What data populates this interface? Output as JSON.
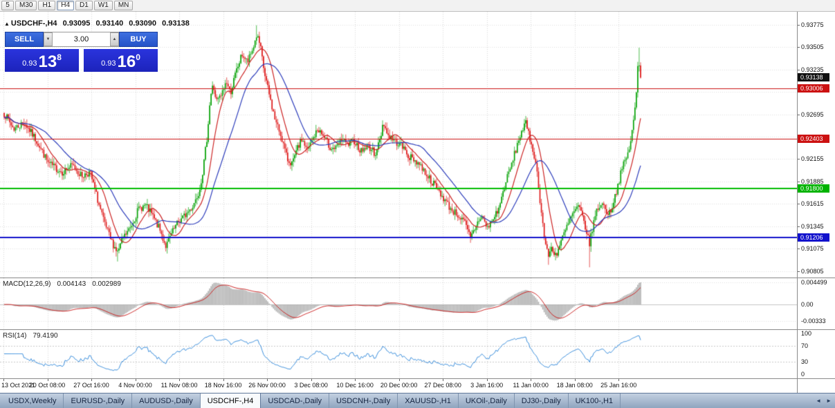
{
  "toolbar": {
    "timeframes": [
      {
        "label": "5",
        "active": false
      },
      {
        "label": "M30",
        "active": false
      },
      {
        "label": "H1",
        "active": false
      },
      {
        "label": "H4",
        "active": true
      },
      {
        "label": "D1",
        "active": false
      },
      {
        "label": "W1",
        "active": false
      },
      {
        "label": "MN",
        "active": false
      }
    ]
  },
  "chart": {
    "header": {
      "marker": "▲",
      "symbol": "USDCHF-,H4",
      "open": "0.93095",
      "high": "0.93140",
      "low": "0.93090",
      "close": "0.93138"
    },
    "trade_panel": {
      "sell_label": "SELL",
      "buy_label": "BUY",
      "volume": "3.00",
      "spinner_up": "▲",
      "spinner_down": "▼",
      "bid": {
        "prefix": "0.93",
        "big": "13",
        "sup": "8"
      },
      "ask": {
        "prefix": "0.93",
        "big": "16",
        "sup": "0"
      }
    },
    "price_axis": {
      "ticks": [
        "0.93775",
        "0.93505",
        "0.93235",
        "0.92695",
        "0.92155",
        "0.91885",
        "0.91615",
        "0.91345",
        "0.91075",
        "0.90805"
      ],
      "badges": [
        {
          "label": "0.93138",
          "color": "#101010",
          "price": 0.93138
        },
        {
          "label": "0.93006",
          "color": "#cc1111",
          "price": 0.93006
        },
        {
          "label": "0.92403",
          "color": "#cc1111",
          "price": 0.92403
        },
        {
          "label": "0.91800",
          "color": "#00b300",
          "price": 0.918
        },
        {
          "label": "0.91206",
          "color": "#1111cc",
          "price": 0.91206
        }
      ]
    },
    "time_axis": [
      "13 Oct 2021",
      "20 Oct 08:00",
      "27 Oct 16:00",
      "4 Nov 00:00",
      "11 Nov 08:00",
      "18 Nov 16:00",
      "26 Nov 00:00",
      "3 Dec 08:00",
      "10 Dec 16:00",
      "20 Dec 00:00",
      "27 Dec 08:00",
      "3 Jan 16:00",
      "11 Jan 00:00",
      "18 Jan 08:00",
      "25 Jan 16:00"
    ]
  },
  "macd": {
    "title": "MACD(12,26,9)",
    "value_macd": "0.004143",
    "value_signal": "0.002989",
    "axis": [
      "0.004499",
      "0.00",
      "-0.00333"
    ]
  },
  "rsi": {
    "title": "RSI(14)",
    "value": "79.4190",
    "axis": [
      "100",
      "70",
      "30",
      "0"
    ]
  },
  "tabs": {
    "items": [
      {
        "label": "USDX,Weekly",
        "active": false
      },
      {
        "label": "EURUSD-,Daily",
        "active": false
      },
      {
        "label": "AUDUSD-,Daily",
        "active": false
      },
      {
        "label": "USDCHF-,H4",
        "active": true
      },
      {
        "label": "USDCAD-,Daily",
        "active": false
      },
      {
        "label": "USDCNH-,Daily",
        "active": false
      },
      {
        "label": "XAUUSD-,H1",
        "active": false
      },
      {
        "label": "UKOil-,Daily",
        "active": false
      },
      {
        "label": "DJ30-,Daily",
        "active": false
      },
      {
        "label": "UK100-,H1",
        "active": false
      }
    ],
    "scroll_left": "◄",
    "scroll_right": "►"
  },
  "chart_data": {
    "type": "candlestick",
    "symbol": "USDCHF",
    "timeframe": "H4",
    "current": {
      "open": 0.93095,
      "high": 0.9314,
      "low": 0.9309,
      "close": 0.93138
    },
    "bars": 450,
    "bars_per_label": 31,
    "ylim": [
      0.9072,
      0.9393
    ],
    "up_color": "#00a000",
    "down_color": "#dd1111",
    "grid_prices": [
      0.93775,
      0.93505,
      0.93235,
      0.92965,
      0.92695,
      0.92425,
      0.92155,
      0.91885,
      0.91615,
      0.91345,
      0.91075,
      0.90805
    ],
    "levels": [
      {
        "price": 0.93006,
        "color": "#cc1111",
        "width": 1
      },
      {
        "price": 0.92403,
        "color": "#cc1111",
        "width": 1
      },
      {
        "price": 0.918,
        "color": "#00bb00",
        "width": 2
      },
      {
        "price": 0.91206,
        "color": "#1111cc",
        "width": 2
      }
    ],
    "moving_averages": [
      {
        "type": "sma",
        "period": 12,
        "color": "#cc2222"
      },
      {
        "type": "sma",
        "period": 30,
        "color": "#2b3bbb"
      }
    ],
    "price_path": [
      [
        5,
        0.9272
      ],
      [
        20,
        0.9252
      ],
      [
        35,
        0.926
      ],
      [
        55,
        0.9235
      ],
      [
        70,
        0.921
      ],
      [
        90,
        0.92
      ],
      [
        105,
        0.9208
      ],
      [
        118,
        0.9195
      ],
      [
        130,
        0.92
      ],
      [
        140,
        0.917
      ],
      [
        150,
        0.914
      ],
      [
        160,
        0.9118
      ],
      [
        170,
        0.9103
      ],
      [
        178,
        0.912
      ],
      [
        188,
        0.9132
      ],
      [
        200,
        0.9155
      ],
      [
        210,
        0.916
      ],
      [
        220,
        0.9148
      ],
      [
        230,
        0.9132
      ],
      [
        240,
        0.911
      ],
      [
        248,
        0.9125
      ],
      [
        258,
        0.914
      ],
      [
        268,
        0.9148
      ],
      [
        278,
        0.9158
      ],
      [
        288,
        0.9178
      ],
      [
        294,
        0.9205
      ],
      [
        299,
        0.924
      ],
      [
        304,
        0.929
      ],
      [
        308,
        0.9305
      ],
      [
        313,
        0.9285
      ],
      [
        320,
        0.9292
      ],
      [
        327,
        0.931
      ],
      [
        333,
        0.9295
      ],
      [
        341,
        0.932
      ],
      [
        350,
        0.9342
      ],
      [
        358,
        0.9332
      ],
      [
        366,
        0.935
      ],
      [
        371,
        0.9365
      ],
      [
        376,
        0.9352
      ],
      [
        382,
        0.932
      ],
      [
        390,
        0.929
      ],
      [
        398,
        0.9262
      ],
      [
        407,
        0.9242
      ],
      [
        415,
        0.9215
      ],
      [
        423,
        0.921
      ],
      [
        430,
        0.9228
      ],
      [
        437,
        0.924
      ],
      [
        444,
        0.9225
      ],
      [
        452,
        0.924
      ],
      [
        460,
        0.9252
      ],
      [
        468,
        0.9242
      ],
      [
        477,
        0.923
      ],
      [
        486,
        0.9228
      ],
      [
        494,
        0.924
      ],
      [
        502,
        0.9232
      ],
      [
        512,
        0.9238
      ],
      [
        522,
        0.9225
      ],
      [
        532,
        0.9232
      ],
      [
        542,
        0.9222
      ],
      [
        550,
        0.924
      ],
      [
        554,
        0.9262
      ],
      [
        560,
        0.9245
      ],
      [
        570,
        0.9238
      ],
      [
        580,
        0.9232
      ],
      [
        592,
        0.9218
      ],
      [
        604,
        0.9212
      ],
      [
        616,
        0.9198
      ],
      [
        628,
        0.9184
      ],
      [
        640,
        0.917
      ],
      [
        652,
        0.9155
      ],
      [
        662,
        0.9148
      ],
      [
        672,
        0.9138
      ],
      [
        680,
        0.912
      ],
      [
        688,
        0.9135
      ],
      [
        696,
        0.9148
      ],
      [
        704,
        0.9132
      ],
      [
        712,
        0.9142
      ],
      [
        722,
        0.9158
      ],
      [
        730,
        0.9185
      ],
      [
        738,
        0.9205
      ],
      [
        746,
        0.9228
      ],
      [
        754,
        0.925
      ],
      [
        760,
        0.9258
      ],
      [
        766,
        0.924
      ],
      [
        772,
        0.9222
      ],
      [
        777,
        0.9195
      ],
      [
        782,
        0.9155
      ],
      [
        787,
        0.912
      ],
      [
        792,
        0.9098
      ],
      [
        797,
        0.9108
      ],
      [
        804,
        0.91
      ],
      [
        812,
        0.9118
      ],
      [
        820,
        0.9135
      ],
      [
        828,
        0.915
      ],
      [
        836,
        0.9158
      ],
      [
        842,
        0.9146
      ],
      [
        848,
        0.9128
      ],
      [
        852,
        0.9112
      ],
      [
        857,
        0.9135
      ],
      [
        862,
        0.9152
      ],
      [
        868,
        0.9162
      ],
      [
        874,
        0.9158
      ],
      [
        880,
        0.9148
      ],
      [
        886,
        0.9162
      ],
      [
        892,
        0.918
      ],
      [
        898,
        0.92
      ],
      [
        904,
        0.9215
      ],
      [
        908,
        0.9222
      ],
      [
        912,
        0.924
      ],
      [
        916,
        0.9262
      ],
      [
        919,
        0.9288
      ],
      [
        921,
        0.9302
      ],
      [
        922.5,
        0.9348
      ],
      [
        925,
        0.9312
      ],
      [
        927,
        0.93138
      ]
    ],
    "high_overrides": {
      "178": 0.9377,
      "448": 0.935
    },
    "low_overrides": {
      "80": 0.9092,
      "384": 0.9088,
      "413": 0.9085
    },
    "macd": {
      "fast": 12,
      "slow": 26,
      "signal": 9,
      "axis_max": 0.004499,
      "axis_min": -0.00333,
      "current_macd": 0.004143,
      "current_signal": 0.002989,
      "histogram_color": "#b0b0b0",
      "signal_color": "#cc2222"
    },
    "rsi": {
      "period": 14,
      "current": 79.419,
      "levels": [
        70,
        30
      ],
      "color": "#3b8fdd"
    }
  }
}
